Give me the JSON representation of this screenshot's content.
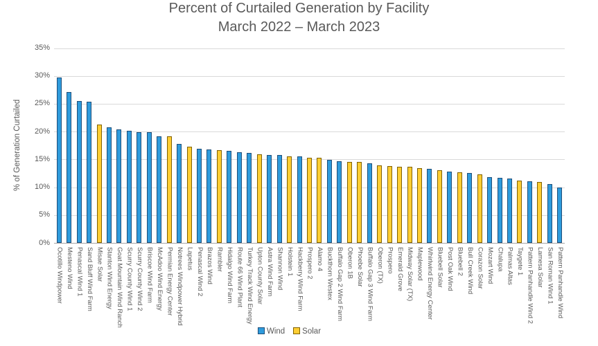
{
  "chart_data": {
    "type": "bar",
    "title": "Percent of Curtailed Generation by Facility",
    "subtitle": "March 2022 – March 2023",
    "ylabel": "% of Generation Curtailed",
    "xlabel": "",
    "ylim": [
      0,
      35
    ],
    "ytick_step": 5,
    "ytick_suffix": "%",
    "grid": true,
    "legend_position": "bottom",
    "series_styles": {
      "Wind": {
        "fill": "#2E9BDC",
        "border": "#1F4E79"
      },
      "Solar": {
        "fill": "#FFCE33",
        "border": "#7F6000"
      }
    },
    "legend_entries": [
      "Wind",
      "Solar"
    ],
    "categories": [
      "Ocotillo Windpower",
      "Mesteno Wind",
      "Penascal Wind 1",
      "Sand Bluff Wind Farm",
      "Misae Solar",
      "Stanton Wind Energy",
      "Goat Mountain Wind Ranch",
      "Scurry County Wind 1",
      "Scurry County Wind 2",
      "Briscoe Wind Farm",
      "McAdoo Wind Energy",
      "Permian Energy Center",
      "Notrees Windpower Hybrid",
      "Lapetus",
      "Penascal Wind 2",
      "Brazos Wind",
      "Rambler",
      "Hidalgo Wind Farm",
      "Route 66 Wind Plant",
      "Turkey Track Wind Energy",
      "Upton County Solar",
      "Astra Wind Farm",
      "Shannon Wind",
      "Holstein 1",
      "Hackberry Wind Farm",
      "Prospero 2",
      "Alamo 4",
      "Buckthorn Westex",
      "Buffalo Gap 2 Wind Farm",
      "Oberon 1B",
      "Phoebe Solar",
      "Buffalo Gap 3 Wind Farm",
      "Oberon (TX)",
      "Prospero",
      "Emerald Grove",
      "Midway Solar (TX)",
      "Maplewood",
      "Whirlwind Energy Center",
      "Bluebell Solar",
      "Post Oak Wind",
      "Bluebell 2",
      "Bull Creek Wind",
      "Corazon Solar",
      "Mozart Wind",
      "Chalupa",
      "Palmas Altas",
      "Taygete 1",
      "Pattern Panhandle Wind 2",
      "Lamesa Solar",
      "San Roman Wind 1",
      "Pattern Panhandle Wind"
    ],
    "values": [
      29.8,
      27.2,
      25.6,
      25.4,
      21.3,
      20.8,
      20.5,
      20.2,
      20.0,
      19.9,
      19.2,
      19.2,
      17.9,
      17.4,
      17.0,
      16.9,
      16.7,
      16.6,
      16.4,
      16.2,
      16.0,
      15.9,
      15.8,
      15.6,
      15.6,
      15.4,
      15.4,
      15.0,
      14.7,
      14.6,
      14.6,
      14.4,
      14.0,
      13.9,
      13.8,
      13.7,
      13.5,
      13.4,
      13.1,
      12.9,
      12.7,
      12.6,
      12.4,
      11.9,
      11.8,
      11.6,
      11.3,
      11.1,
      11.0,
      10.6,
      10.0
    ],
    "series_of": [
      "Wind",
      "Wind",
      "Wind",
      "Wind",
      "Solar",
      "Wind",
      "Wind",
      "Wind",
      "Wind",
      "Wind",
      "Wind",
      "Solar",
      "Wind",
      "Solar",
      "Wind",
      "Wind",
      "Solar",
      "Wind",
      "Wind",
      "Wind",
      "Solar",
      "Wind",
      "Wind",
      "Solar",
      "Wind",
      "Solar",
      "Solar",
      "Wind",
      "Wind",
      "Solar",
      "Solar",
      "Wind",
      "Solar",
      "Solar",
      "Solar",
      "Solar",
      "Solar",
      "Wind",
      "Solar",
      "Wind",
      "Solar",
      "Wind",
      "Solar",
      "Wind",
      "Wind",
      "Wind",
      "Solar",
      "Wind",
      "Solar",
      "Wind",
      "Wind"
    ]
  }
}
